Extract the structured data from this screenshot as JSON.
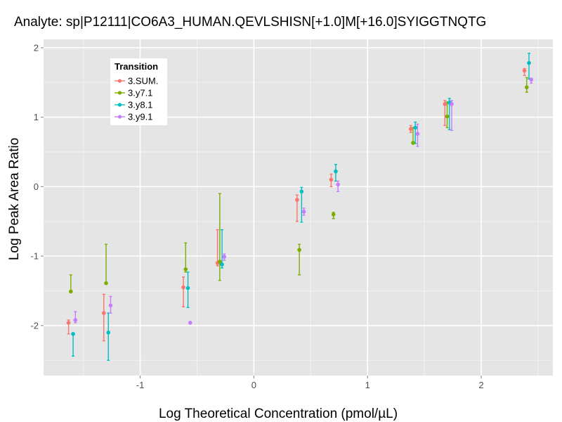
{
  "chart_data": {
    "type": "scatter",
    "title": "Analyte: sp|P12111|CO6A3_HUMAN.QEVLSHISN[+1.0]M[+16.0]SYIGGTNQTG",
    "xlabel": "Log Theoretical Concentration (pmol/µL)",
    "ylabel": "Log Peak Area Ratio",
    "xlim": [
      -1.85,
      2.63
    ],
    "ylim": [
      -2.72,
      2.12
    ],
    "xticks": [
      -1,
      0,
      1,
      2
    ],
    "yticks": [
      -2,
      -1,
      0,
      1,
      2
    ],
    "grid": true,
    "legend": {
      "title": "Transition",
      "position": "top-left"
    },
    "series": [
      {
        "name": "3.SUM.",
        "color": "#F8766D",
        "points": [
          {
            "x": -1.63,
            "y": -1.96,
            "ymin": -2.12,
            "ymax": -1.92
          },
          {
            "x": -1.32,
            "y": -1.82,
            "ymin": -2.22,
            "ymax": -1.55
          },
          {
            "x": -0.62,
            "y": -1.45,
            "ymin": -1.73,
            "ymax": -1.3
          },
          {
            "x": -0.32,
            "y": -1.1,
            "ymin": -1.14,
            "ymax": -0.62
          },
          {
            "x": 0.38,
            "y": -0.19,
            "ymin": -0.5,
            "ymax": -0.12
          },
          {
            "x": 0.68,
            "y": 0.1,
            "ymin": 0.0,
            "ymax": 0.18
          },
          {
            "x": 1.38,
            "y": 0.83,
            "ymin": 0.78,
            "ymax": 0.88
          },
          {
            "x": 1.68,
            "y": 1.19,
            "ymin": 0.88,
            "ymax": 1.24
          },
          {
            "x": 2.38,
            "y": 1.67,
            "ymin": 1.6,
            "ymax": 1.7
          }
        ]
      },
      {
        "name": "3.y7.1",
        "color": "#7CAE00",
        "points": [
          {
            "x": -1.61,
            "y": -1.51,
            "ymin": -1.51,
            "ymax": -1.27
          },
          {
            "x": -1.3,
            "y": -1.39,
            "ymin": -1.39,
            "ymax": -0.83
          },
          {
            "x": -0.6,
            "y": -1.19,
            "ymin": -1.23,
            "ymax": -0.81
          },
          {
            "x": -0.3,
            "y": -1.08,
            "ymin": -1.35,
            "ymax": -0.1
          },
          {
            "x": 0.4,
            "y": -0.91,
            "ymin": -1.27,
            "ymax": -0.83
          },
          {
            "x": 0.7,
            "y": -0.4,
            "ymin": -0.46,
            "ymax": -0.37
          },
          {
            "x": 1.4,
            "y": 0.63,
            "ymin": 0.63,
            "ymax": 0.85
          },
          {
            "x": 1.7,
            "y": 1.01,
            "ymin": 0.85,
            "ymax": 1.22
          },
          {
            "x": 2.4,
            "y": 1.43,
            "ymin": 1.36,
            "ymax": 1.57
          }
        ]
      },
      {
        "name": "3.y8.1",
        "color": "#00BFC4",
        "points": [
          {
            "x": -1.59,
            "y": -2.12,
            "ymin": -2.44,
            "ymax": -2.12
          },
          {
            "x": -1.28,
            "y": -2.1,
            "ymin": -2.5,
            "ymax": -1.82
          },
          {
            "x": -0.58,
            "y": -1.46,
            "ymin": -1.74,
            "ymax": -1.23
          },
          {
            "x": -0.28,
            "y": -1.12,
            "ymin": -1.17,
            "ymax": -0.62
          },
          {
            "x": 0.42,
            "y": -0.07,
            "ymin": -0.51,
            "ymax": -0.01
          },
          {
            "x": 0.72,
            "y": 0.22,
            "ymin": 0.08,
            "ymax": 0.32
          },
          {
            "x": 1.42,
            "y": 0.85,
            "ymin": 0.62,
            "ymax": 0.93
          },
          {
            "x": 1.72,
            "y": 1.21,
            "ymin": 0.82,
            "ymax": 1.27
          },
          {
            "x": 2.42,
            "y": 1.78,
            "ymin": 1.55,
            "ymax": 1.92
          }
        ]
      },
      {
        "name": "3.y9.1",
        "color": "#C77CFF",
        "points": [
          {
            "x": -1.57,
            "y": -1.92,
            "ymin": -1.96,
            "ymax": -1.8
          },
          {
            "x": -1.26,
            "y": -1.71,
            "ymin": -1.82,
            "ymax": -1.58
          },
          {
            "x": -0.56,
            "y": -1.96,
            "ymin": -1.96,
            "ymax": -1.96
          },
          {
            "x": -0.26,
            "y": -1.01,
            "ymin": -1.06,
            "ymax": -0.97
          },
          {
            "x": 0.44,
            "y": -0.36,
            "ymin": -0.41,
            "ymax": -0.31
          },
          {
            "x": 0.74,
            "y": 0.03,
            "ymin": -0.07,
            "ymax": 0.08
          },
          {
            "x": 1.44,
            "y": 0.76,
            "ymin": 0.58,
            "ymax": 0.9
          },
          {
            "x": 1.74,
            "y": 1.19,
            "ymin": 0.81,
            "ymax": 1.24
          },
          {
            "x": 2.44,
            "y": 1.54,
            "ymin": 1.49,
            "ymax": 1.56
          }
        ]
      }
    ]
  }
}
